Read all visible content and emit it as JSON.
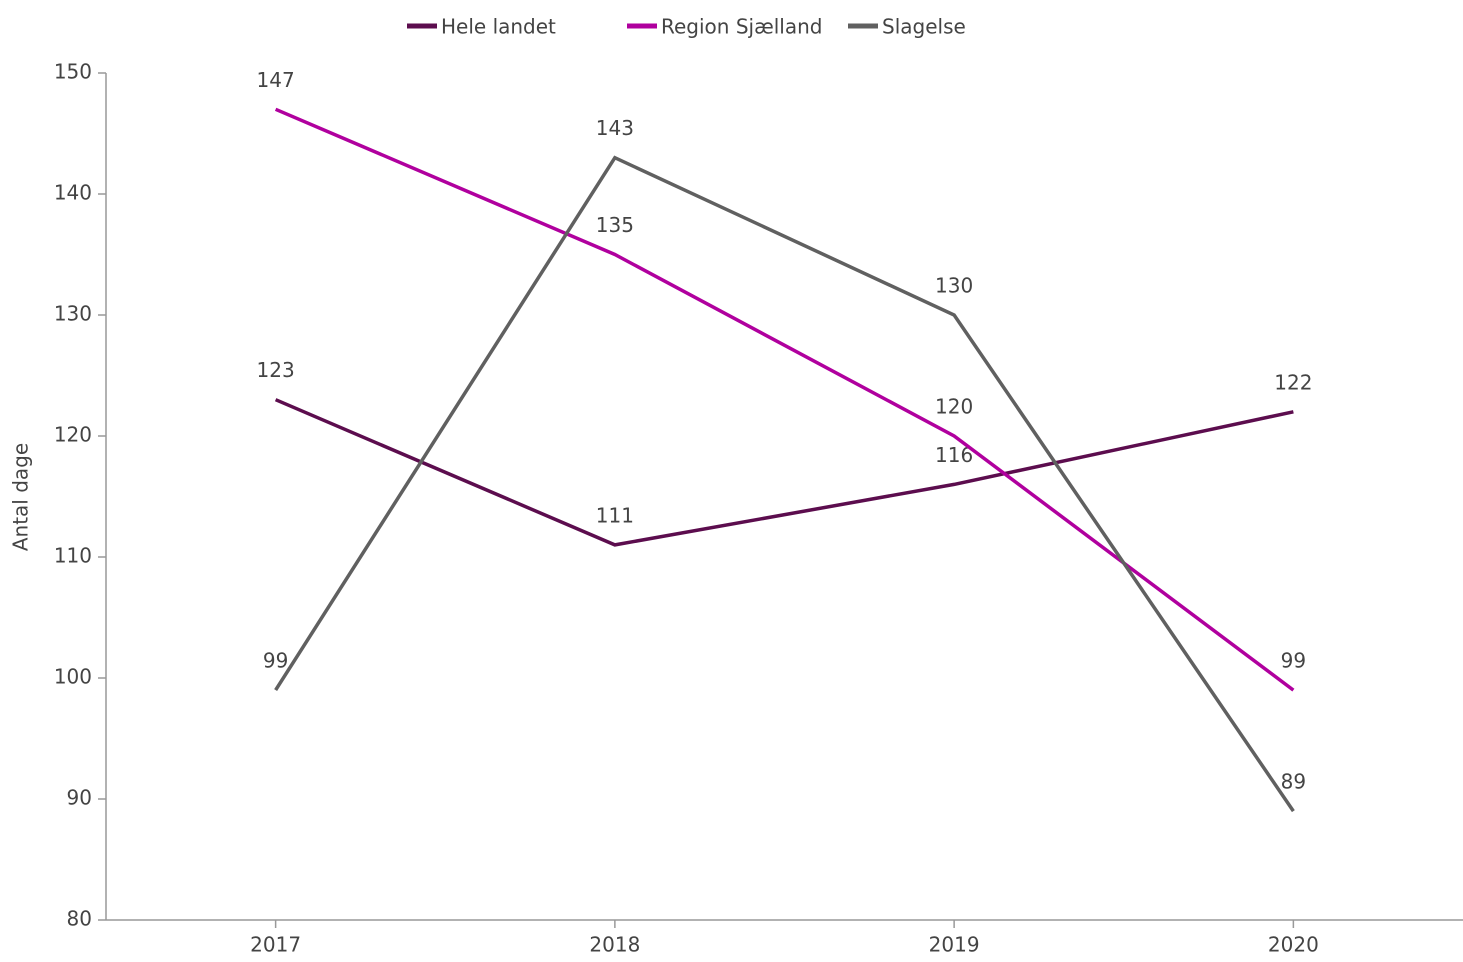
{
  "chart_data": {
    "type": "line",
    "y_label": "Antal dage",
    "categories": [
      "2017",
      "2018",
      "2019",
      "2020"
    ],
    "series": [
      {
        "name": "Hele landet",
        "color": "#5c0d4e",
        "values": [
          123,
          111,
          116,
          122
        ]
      },
      {
        "name": "Region Sjælland",
        "color": "#b0009e",
        "values": [
          147,
          135,
          120,
          99
        ]
      },
      {
        "name": "Slagelse",
        "color": "#606060",
        "values": [
          99,
          143,
          130,
          89
        ]
      }
    ],
    "ylim": [
      80,
      150
    ],
    "yticks": [
      80,
      90,
      100,
      110,
      120,
      130,
      140,
      150
    ],
    "legend": "top",
    "grid": false
  }
}
